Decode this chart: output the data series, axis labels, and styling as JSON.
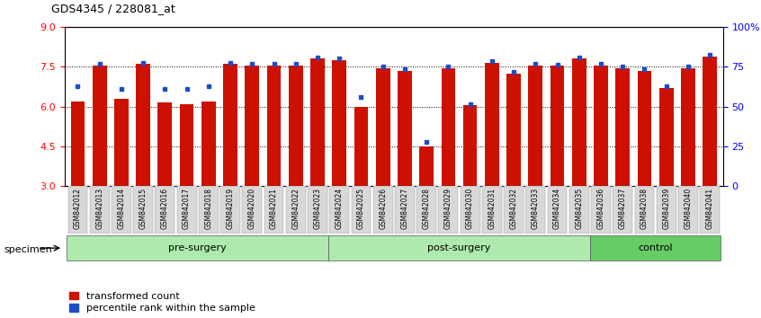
{
  "title": "GDS4345 / 228081_at",
  "categories": [
    "GSM842012",
    "GSM842013",
    "GSM842014",
    "GSM842015",
    "GSM842016",
    "GSM842017",
    "GSM842018",
    "GSM842019",
    "GSM842020",
    "GSM842021",
    "GSM842022",
    "GSM842023",
    "GSM842024",
    "GSM842025",
    "GSM842026",
    "GSM842027",
    "GSM842028",
    "GSM842029",
    "GSM842030",
    "GSM842031",
    "GSM842032",
    "GSM842033",
    "GSM842034",
    "GSM842035",
    "GSM842036",
    "GSM842037",
    "GSM842038",
    "GSM842039",
    "GSM842040",
    "GSM842041"
  ],
  "red_values": [
    6.2,
    7.55,
    6.3,
    7.6,
    6.15,
    6.1,
    6.2,
    7.6,
    7.55,
    7.55,
    7.55,
    7.8,
    7.75,
    6.0,
    7.45,
    7.35,
    4.5,
    7.45,
    6.05,
    7.65,
    7.25,
    7.55,
    7.55,
    7.8,
    7.55,
    7.45,
    7.35,
    6.7,
    7.45,
    7.9
  ],
  "blue_values": [
    6.75,
    7.6,
    6.65,
    7.65,
    6.65,
    6.65,
    6.75,
    7.65,
    7.6,
    7.6,
    7.6,
    7.85,
    7.8,
    6.35,
    7.5,
    7.4,
    4.65,
    7.5,
    6.1,
    7.7,
    7.3,
    7.6,
    7.58,
    7.85,
    7.6,
    7.5,
    7.4,
    6.75,
    7.5,
    7.95
  ],
  "group_labels": [
    "pre-surgery",
    "post-surgery",
    "control"
  ],
  "group_ranges": [
    [
      0,
      12
    ],
    [
      12,
      24
    ],
    [
      24,
      30
    ]
  ],
  "bar_color": "#CC1100",
  "blue_color": "#1C4DC8",
  "ylim": [
    3,
    9
  ],
  "yticks": [
    3,
    4.5,
    6,
    7.5,
    9
  ],
  "right_yticks": [
    0,
    25,
    50,
    75,
    100
  ],
  "right_yticklabels": [
    "0",
    "25",
    "50",
    "75",
    "100%"
  ],
  "bar_width": 0.65
}
